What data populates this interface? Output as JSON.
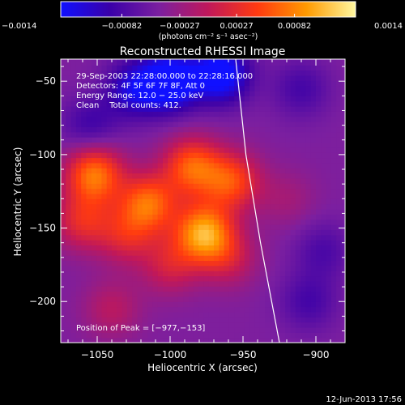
{
  "chart_data": {
    "type": "heatmap",
    "title": "Reconstructed RHESSI Image",
    "xlabel": "Heliocentric X (arcsec)",
    "ylabel": "Heliocentric Y (arcsec)",
    "xlim": [
      -1075,
      -880
    ],
    "ylim": [
      -228,
      -35
    ],
    "x_ticks": [
      -1050,
      -1000,
      -950,
      -900
    ],
    "x_tick_labels": [
      "−1050",
      "−1000",
      "−950",
      "−900"
    ],
    "y_ticks": [
      -50,
      -100,
      -150,
      -200
    ],
    "y_tick_labels": [
      "−50",
      "−100",
      "−150",
      "−200"
    ],
    "colorbar": {
      "range": [
        -0.0014,
        0.0014
      ],
      "ticks": [
        -0.0014,
        -0.00082,
        -0.00027,
        0.00027,
        0.00082,
        0.0014
      ],
      "tick_labels": [
        "−0.0014",
        "−0.00082",
        "−0.00027",
        "0.00027",
        "0.00082",
        "0.0014"
      ],
      "unit_label": "(photons cm⁻² s⁻¹ asec⁻²)",
      "colors": [
        "#1010ff",
        "#3a00a8",
        "#7b1fa0",
        "#c0185a",
        "#ff3a10",
        "#ff9a00",
        "#fff8a0"
      ]
    },
    "annotations": {
      "time": "29-Sep-2003 22:28:00.000 to 22:28:16.000",
      "detectors": "Detectors: 4F 5F 6F 7F 8F, Att 0",
      "energy": "Energy Range: 12.0 − 25.0 keV",
      "clean": "Clean    Total counts: 412.",
      "peak": "Position of Peak = [−977,−153]"
    },
    "peak": {
      "x": -977,
      "y": -153
    },
    "sources": [
      {
        "x": -977,
        "y": -153,
        "amp": 0.0014
      },
      {
        "x": -1052,
        "y": -113,
        "amp": 0.0012
      },
      {
        "x": -1015,
        "y": -133,
        "amp": 0.0011
      },
      {
        "x": -985,
        "y": -108,
        "amp": 0.00105
      },
      {
        "x": -958,
        "y": -118,
        "amp": 0.00095
      },
      {
        "x": -1060,
        "y": -145,
        "amp": 0.0007
      },
      {
        "x": -1030,
        "y": -155,
        "amp": 0.0006
      },
      {
        "x": -1000,
        "y": -175,
        "amp": 0.00055
      },
      {
        "x": -960,
        "y": -170,
        "amp": 0.0005
      },
      {
        "x": -1040,
        "y": -205,
        "amp": 0.0004
      },
      {
        "x": -920,
        "y": -130,
        "amp": 0.00025
      },
      {
        "x": -1000,
        "y": -50,
        "amp": -0.0012
      },
      {
        "x": -965,
        "y": -45,
        "amp": -0.0011
      },
      {
        "x": -1025,
        "y": -55,
        "amp": -0.0007
      },
      {
        "x": -1055,
        "y": -80,
        "amp": -0.00045
      },
      {
        "x": -910,
        "y": -55,
        "amp": -0.0004
      },
      {
        "x": -905,
        "y": -200,
        "amp": -0.0004
      },
      {
        "x": -895,
        "y": -165,
        "amp": -0.00035
      }
    ],
    "limb": [
      {
        "x": -955,
        "y": -35
      },
      {
        "x": -948,
        "y": -100
      },
      {
        "x": -938,
        "y": -160
      },
      {
        "x": -925,
        "y": -228
      }
    ]
  },
  "footer_date": "12-Jun-2013 17:56"
}
